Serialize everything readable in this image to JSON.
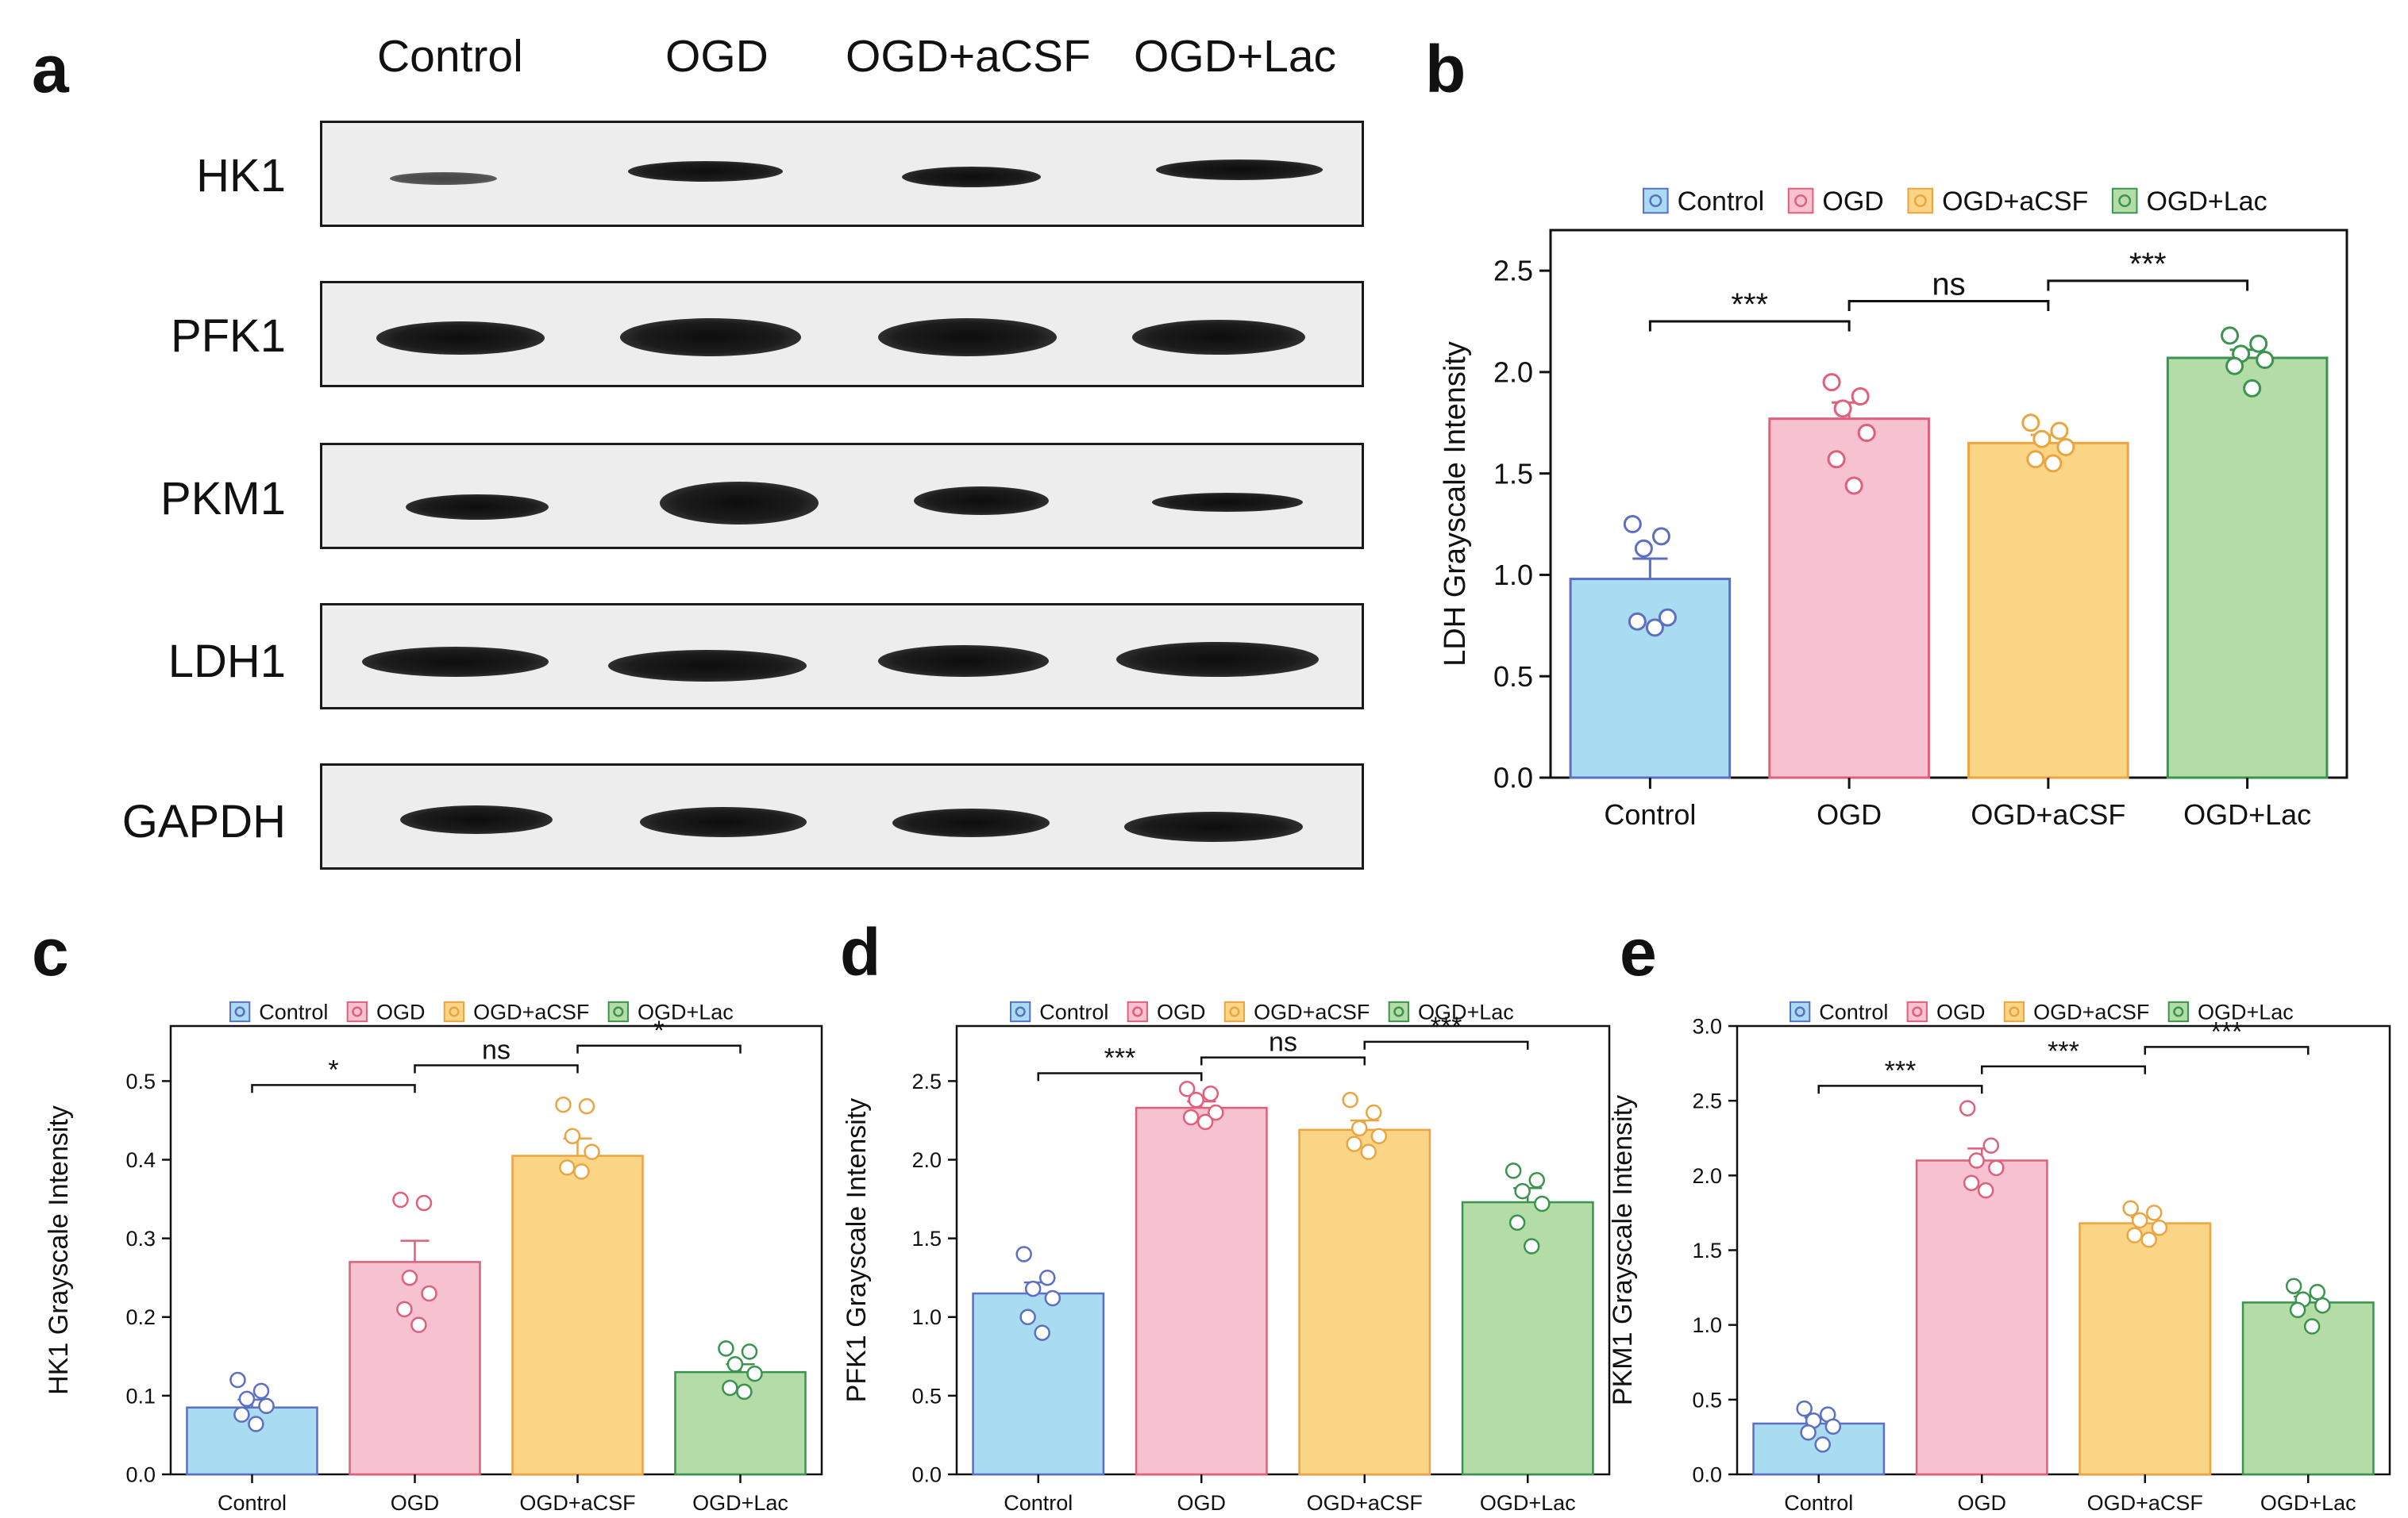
{
  "panels": {
    "a": "a",
    "b": "b",
    "c": "c",
    "d": "d",
    "e": "e"
  },
  "western_blot": {
    "groups": [
      "Control",
      "OGD",
      "OGD+aCSF",
      "OGD+Lac"
    ],
    "rows": [
      "HK1",
      "PFK1",
      "PKM1",
      "LDH1",
      "GAPDH"
    ]
  },
  "legend_labels": [
    "Control",
    "OGD",
    "OGD+aCSF",
    "OGD+Lac"
  ],
  "colors": {
    "fills": [
      "#a9dcf0",
      "#f6c2cf",
      "#fbd586",
      "#b4dca6"
    ],
    "strokes": [
      "#5b6fc4",
      "#e05f7a",
      "#eba440",
      "#3a934e"
    ]
  },
  "chart_data": [
    {
      "id": "b",
      "type": "bar",
      "categories": [
        "Control",
        "OGD",
        "OGD+aCSF",
        "OGD+Lac"
      ],
      "values": [
        0.98,
        1.77,
        1.65,
        2.07
      ],
      "errors": [
        0.1,
        0.08,
        0.04,
        0.04
      ],
      "points": [
        [
          1.25,
          1.19,
          1.13,
          0.79,
          0.77,
          0.74
        ],
        [
          1.95,
          1.88,
          1.82,
          1.7,
          1.57,
          1.44
        ],
        [
          1.75,
          1.71,
          1.67,
          1.63,
          1.57,
          1.55
        ],
        [
          2.18,
          2.14,
          2.09,
          2.06,
          2.03,
          1.92
        ]
      ],
      "ylabel": "LDH Grayscale Intensity",
      "ylim": [
        0,
        2.7
      ],
      "yticks": [
        "0.0",
        "0.5",
        "1.0",
        "1.5",
        "2.0",
        "2.5"
      ],
      "significance": [
        {
          "from": 0,
          "to": 1,
          "label": "***",
          "y": 2.25,
          "tier": 0
        },
        {
          "from": 1,
          "to": 2,
          "label": "ns",
          "y": 2.35,
          "tier": 1
        },
        {
          "from": 2,
          "to": 3,
          "label": "***",
          "y": 2.45,
          "tier": 1
        }
      ]
    },
    {
      "id": "c",
      "type": "bar",
      "categories": [
        "Control",
        "OGD",
        "OGD+aCSF",
        "OGD+Lac"
      ],
      "values": [
        0.085,
        0.27,
        0.405,
        0.13
      ],
      "errors": [
        0.01,
        0.027,
        0.022,
        0.01
      ],
      "points": [
        [
          0.12,
          0.106,
          0.096,
          0.087,
          0.076,
          0.064
        ],
        [
          0.349,
          0.345,
          0.25,
          0.23,
          0.21,
          0.19
        ],
        [
          0.47,
          0.468,
          0.43,
          0.41,
          0.39,
          0.385
        ],
        [
          0.16,
          0.156,
          0.14,
          0.128,
          0.11,
          0.105
        ]
      ],
      "ylabel": "HK1 Grayscale Intensity",
      "ylim": [
        0,
        0.57
      ],
      "yticks": [
        "0.0",
        "0.1",
        "0.2",
        "0.3",
        "0.4",
        "0.5"
      ],
      "significance": [
        {
          "from": 0,
          "to": 1,
          "label": "*",
          "y": 0.495,
          "tier": 0
        },
        {
          "from": 1,
          "to": 2,
          "label": "ns",
          "y": 0.52,
          "tier": 1
        },
        {
          "from": 2,
          "to": 3,
          "label": "*",
          "y": 0.545,
          "tier": 1
        }
      ]
    },
    {
      "id": "d",
      "type": "bar",
      "categories": [
        "Control",
        "OGD",
        "OGD+aCSF",
        "OGD+Lac"
      ],
      "values": [
        1.15,
        2.33,
        2.19,
        1.73
      ],
      "errors": [
        0.07,
        0.04,
        0.06,
        0.09
      ],
      "points": [
        [
          1.4,
          1.25,
          1.18,
          1.12,
          1.0,
          0.9
        ],
        [
          2.45,
          2.42,
          2.38,
          2.3,
          2.27,
          2.24
        ],
        [
          2.38,
          2.3,
          2.2,
          2.15,
          2.1,
          2.05
        ],
        [
          1.93,
          1.87,
          1.8,
          1.72,
          1.6,
          1.45
        ]
      ],
      "ylabel": "PFK1 Grayscale Intensity",
      "ylim": [
        0,
        2.85
      ],
      "yticks": [
        "0.0",
        "0.5",
        "1.0",
        "1.5",
        "2.0",
        "2.5"
      ],
      "significance": [
        {
          "from": 0,
          "to": 1,
          "label": "***",
          "y": 2.55,
          "tier": 0
        },
        {
          "from": 1,
          "to": 2,
          "label": "ns",
          "y": 2.65,
          "tier": 1
        },
        {
          "from": 2,
          "to": 3,
          "label": "***",
          "y": 2.75,
          "tier": 1
        }
      ]
    },
    {
      "id": "e",
      "type": "bar",
      "categories": [
        "Control",
        "OGD",
        "OGD+aCSF",
        "OGD+Lac"
      ],
      "values": [
        0.34,
        2.1,
        1.68,
        1.15
      ],
      "errors": [
        0.04,
        0.08,
        0.04,
        0.04
      ],
      "points": [
        [
          0.44,
          0.4,
          0.36,
          0.32,
          0.28,
          0.2
        ],
        [
          2.45,
          2.2,
          2.1,
          2.05,
          1.95,
          1.9
        ],
        [
          1.78,
          1.75,
          1.7,
          1.65,
          1.6,
          1.57
        ],
        [
          1.26,
          1.22,
          1.17,
          1.13,
          1.1,
          0.99
        ]
      ],
      "ylabel": "PKM1 Grayscale Intensity",
      "ylim": [
        0,
        3.0
      ],
      "yticks": [
        "0.0",
        "0.5",
        "1.0",
        "1.5",
        "2.0",
        "2.5",
        "3.0"
      ],
      "significance": [
        {
          "from": 0,
          "to": 1,
          "label": "***",
          "y": 2.6,
          "tier": 0
        },
        {
          "from": 1,
          "to": 2,
          "label": "***",
          "y": 2.73,
          "tier": 1
        },
        {
          "from": 2,
          "to": 3,
          "label": "***",
          "y": 2.86,
          "tier": 1
        }
      ]
    }
  ]
}
